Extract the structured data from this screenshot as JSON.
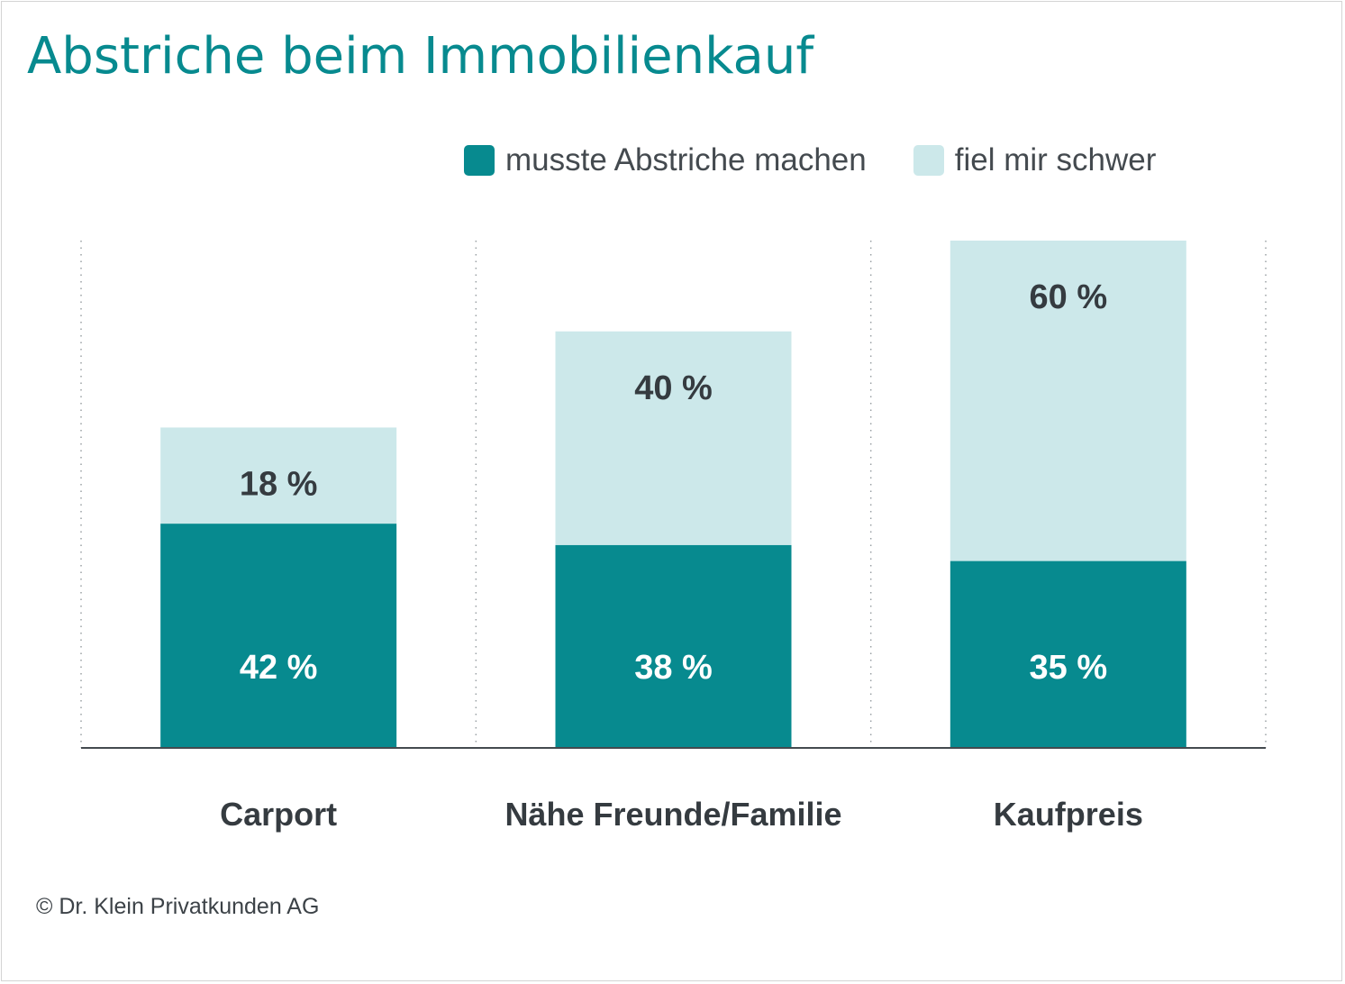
{
  "title": "Abstriche beim Immobilienkauf",
  "footer": "© Dr. Klein Privatkunden AG",
  "legend": [
    {
      "label": "musste Abstriche machen",
      "color": "#078a8f"
    },
    {
      "label": "fiel mir schwer",
      "color": "#cce8ea"
    }
  ],
  "chart_data": {
    "type": "bar",
    "stacked": true,
    "categories": [
      "Carport",
      "Nähe Freunde/Familie",
      "Kaufpreis"
    ],
    "series": [
      {
        "name": "musste Abstriche machen",
        "values": [
          42,
          38,
          35
        ],
        "labels": [
          "42 %",
          "38 %",
          "35 %"
        ],
        "color": "#078a8f",
        "label_color": "#ffffff"
      },
      {
        "name": "fiel mir schwer",
        "values": [
          18,
          40,
          60
        ],
        "labels": [
          "18 %",
          "40 %",
          "60 %"
        ],
        "color": "#cce8ea",
        "label_color": "#353b40"
      }
    ],
    "ylim": [
      0,
      95
    ],
    "grid": "vertical dotted separators",
    "legend_position": "top-right",
    "xlabel": "",
    "ylabel": ""
  }
}
